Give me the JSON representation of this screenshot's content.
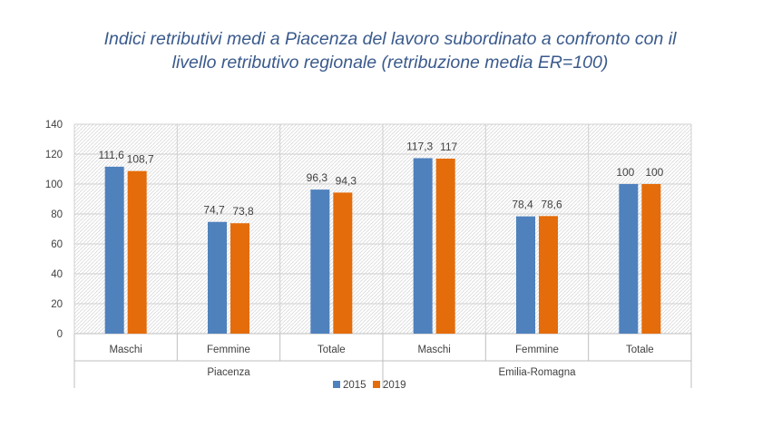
{
  "title": {
    "line1": "Indici retributivi medi a Piacenza del lavoro subordinato a confronto con il",
    "line2": "livello retributivo regionale (retribuzione media ER=100)"
  },
  "chart_data": {
    "type": "bar",
    "title": "Indici retributivi medi a Piacenza del lavoro subordinato a confronto con il livello retributivo regionale (retribuzione media ER=100)",
    "xlabel": "",
    "ylabel": "",
    "ylim": [
      0,
      140
    ],
    "yticks": [
      "0",
      "20",
      "40",
      "60",
      "80",
      "100",
      "120",
      "140"
    ],
    "groups": [
      "Piacenza",
      "Emilia-Romagna"
    ],
    "categories": [
      "Maschi",
      "Femmine",
      "Totale",
      "Maschi",
      "Femmine",
      "Totale"
    ],
    "series": [
      {
        "name": "2015",
        "color": "#4f81bd",
        "values": [
          111.6,
          74.7,
          96.3,
          117.3,
          78.4,
          100
        ],
        "labels": [
          "111,6",
          "74,7",
          "96,3",
          "117,3",
          "78,4",
          "100"
        ]
      },
      {
        "name": "2019",
        "color": "#e46c0a",
        "values": [
          108.7,
          73.8,
          94.3,
          117,
          78.6,
          100
        ],
        "labels": [
          "108,7",
          "73,8",
          "94,3",
          "117",
          "78,6",
          "100"
        ]
      }
    ],
    "grid": true,
    "legend": "bottom"
  }
}
